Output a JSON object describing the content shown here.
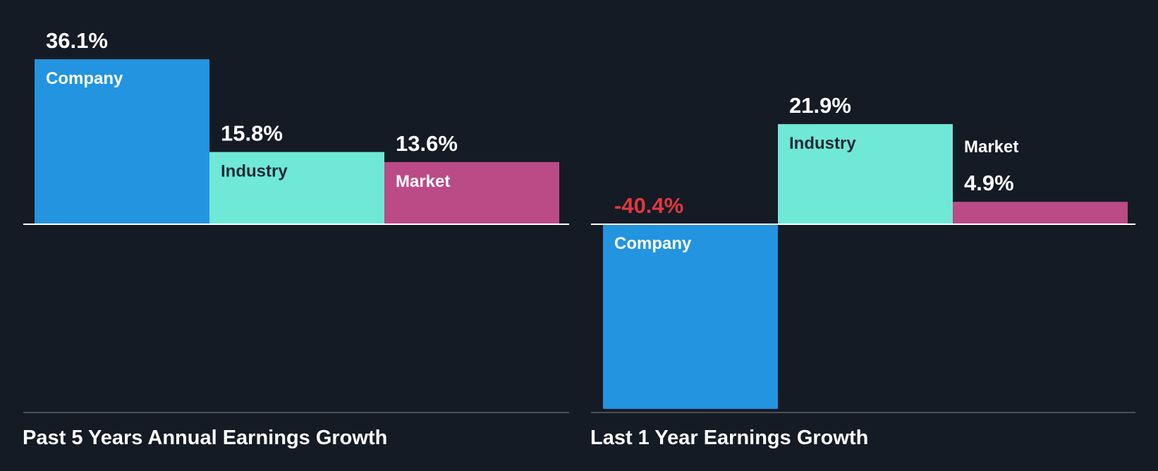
{
  "colors": {
    "background": "#151b24",
    "company": "#2394e0",
    "industry": "#70e8d7",
    "market": "#bb4b87",
    "negative_label": "#e0393e",
    "label_text": "#ffffff",
    "industry_label_text": "#1c2a36",
    "baseline": "#ffffff",
    "bottom_rule": "#4a5058"
  },
  "chart_data": [
    {
      "type": "bar",
      "title": "Past 5 Years Annual Earnings Growth",
      "categories": [
        "Company",
        "Industry",
        "Market"
      ],
      "values": [
        36.1,
        15.8,
        13.6
      ],
      "value_labels": [
        "36.1%",
        "15.8%",
        "13.6%"
      ],
      "unit": "%",
      "ylim": [
        -40.4,
        36.1
      ],
      "grid": false,
      "legend": "none"
    },
    {
      "type": "bar",
      "title": "Last 1 Year Earnings Growth",
      "categories": [
        "Company",
        "Industry",
        "Market"
      ],
      "values": [
        -40.4,
        21.9,
        4.9
      ],
      "value_labels": [
        "-40.4%",
        "21.9%",
        "4.9%"
      ],
      "unit": "%",
      "ylim": [
        -40.4,
        36.1
      ],
      "grid": false,
      "legend": "none"
    }
  ]
}
